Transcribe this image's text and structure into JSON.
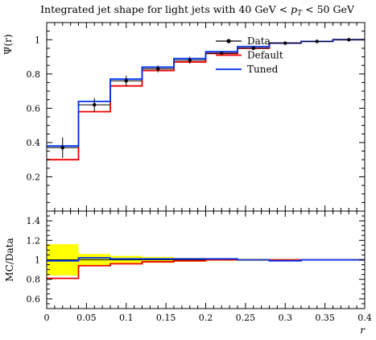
{
  "chart_data": [
    {
      "type": "line",
      "title": "Integrated jet shape for light jets with 40 GeV < p_T < 50 GeV",
      "ylabel": "Ψ(r)",
      "xlim": [
        0,
        0.4
      ],
      "ylim": [
        0,
        1.1
      ],
      "x_ticks": [
        0,
        0.05,
        0.1,
        0.15,
        0.2,
        0.25,
        0.3,
        0.35,
        0.4
      ],
      "y_ticks": [
        0.2,
        0.4,
        0.6,
        0.8,
        1.0
      ],
      "y_tick_labels": [
        "0.2",
        "0.4",
        "0.6",
        "0.8",
        "1"
      ],
      "legend_position": "top-right",
      "bin_edges": [
        0,
        0.04,
        0.08,
        0.12,
        0.16,
        0.2,
        0.24,
        0.28,
        0.32,
        0.36,
        0.4
      ],
      "data": {
        "name": "Data",
        "color": "#000000",
        "x": [
          0.02,
          0.06,
          0.1,
          0.14,
          0.18,
          0.22,
          0.26,
          0.3,
          0.34,
          0.38
        ],
        "y": [
          0.37,
          0.62,
          0.76,
          0.83,
          0.88,
          0.92,
          0.95,
          0.98,
          0.99,
          1.0
        ],
        "yerr": [
          0.06,
          0.04,
          0.03,
          0.02,
          0.02,
          0.01,
          0.01,
          0.005,
          0.004,
          0.0
        ]
      },
      "series": [
        {
          "name": "Default",
          "color": "#ee0000",
          "values": [
            0.3,
            0.58,
            0.73,
            0.82,
            0.87,
            0.92,
            0.95,
            0.98,
            0.99,
            1.0
          ]
        },
        {
          "name": "Tuned",
          "color": "#0033ee",
          "values": [
            0.38,
            0.64,
            0.77,
            0.84,
            0.89,
            0.93,
            0.96,
            0.98,
            0.99,
            1.0
          ]
        }
      ]
    },
    {
      "type": "line",
      "xlabel": "r",
      "ylabel": "MC/Data",
      "xlim": [
        0,
        0.4
      ],
      "ylim": [
        0.5,
        1.5
      ],
      "x_ticks": [
        0,
        0.05,
        0.1,
        0.15,
        0.2,
        0.25,
        0.3,
        0.35,
        0.4
      ],
      "x_tick_labels": [
        "0",
        "0.05",
        "0.1",
        "0.15",
        "0.2",
        "0.25",
        "0.3",
        "0.35",
        "0.4"
      ],
      "y_ticks": [
        0.6,
        0.8,
        1.0,
        1.2,
        1.4
      ],
      "y_tick_labels": [
        "0.6",
        "0.8",
        "1",
        "1.2",
        "1.4"
      ],
      "bin_edges": [
        0,
        0.04,
        0.08,
        0.12,
        0.16,
        0.2,
        0.24,
        0.28,
        0.32,
        0.36,
        0.4
      ],
      "band_color": "#ffff00",
      "data_band_halfwidth": [
        0.16,
        0.06,
        0.04,
        0.03,
        0.02,
        0.01,
        0.01,
        0.005,
        0.004,
        0.0
      ],
      "series": [
        {
          "name": "Default",
          "color": "#ee0000",
          "values": [
            0.81,
            0.94,
            0.96,
            0.98,
            0.99,
            1.0,
            1.0,
            1.0,
            1.0,
            1.0
          ]
        },
        {
          "name": "Tuned",
          "color": "#0033ee",
          "values": [
            0.99,
            1.02,
            1.01,
            1.01,
            1.01,
            1.01,
            1.0,
            0.99,
            1.0,
            1.0
          ]
        }
      ]
    }
  ]
}
